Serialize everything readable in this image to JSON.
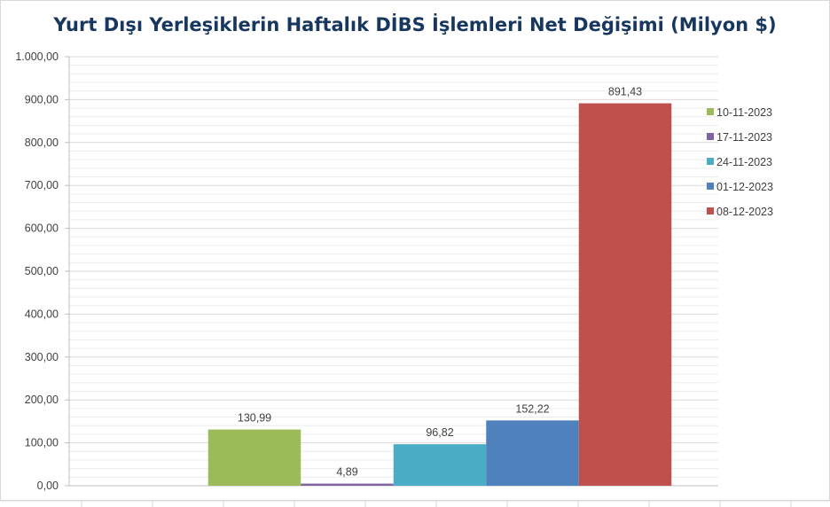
{
  "chart_data": {
    "type": "bar",
    "title": "Yurt Dışı Yerleşiklerin Haftalık DİBS İşlemleri Net Değişimi (Milyon $)",
    "xlabel": "",
    "ylabel": "",
    "ylim": [
      0,
      1000
    ],
    "ytick_step": 100,
    "ytick_labels": [
      "0,00",
      "100,00",
      "200,00",
      "300,00",
      "400,00",
      "500,00",
      "600,00",
      "700,00",
      "800,00",
      "900,00",
      "1.000,00"
    ],
    "grid": true,
    "legend_position": "right",
    "series": [
      {
        "name": "10-11-2023",
        "value": 130.99,
        "label": "130,99",
        "color": "#9bbb59"
      },
      {
        "name": "17-11-2023",
        "value": 4.89,
        "label": "4,89",
        "color": "#8064a2"
      },
      {
        "name": "24-11-2023",
        "value": 96.82,
        "label": "96,82",
        "color": "#4bacc6"
      },
      {
        "name": "01-12-2023",
        "value": 152.22,
        "label": "152,22",
        "color": "#4f81bd"
      },
      {
        "name": "08-12-2023",
        "value": 891.43,
        "label": "891,43",
        "color": "#c0504d"
      }
    ]
  }
}
